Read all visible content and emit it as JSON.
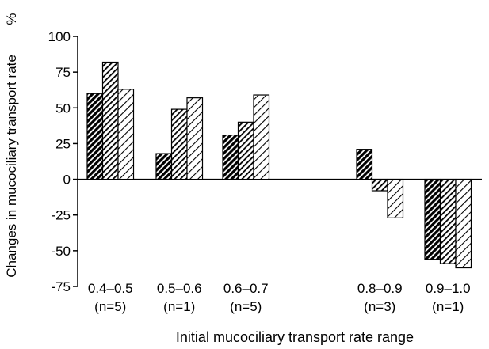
{
  "chart_data": {
    "type": "bar",
    "xlabel": "Initial mucociliary transport rate range",
    "ylabel": "Changes in mucociliary transport rate",
    "yunit": "%",
    "ylim": [
      -75,
      100
    ],
    "yticks": [
      100,
      75,
      50,
      25,
      0,
      -25,
      -50,
      -75
    ],
    "ytick_labels": [
      "100",
      "75",
      "50",
      "25",
      "0",
      "-25",
      "-50",
      "-75"
    ],
    "grid": false,
    "legend": "none",
    "categories": [
      "0.4–0.5",
      "0.5–0.6",
      "0.6–0.7",
      "0.8–0.9",
      "0.9–1.0"
    ],
    "category_counts": [
      "(n=5)",
      "(n=1)",
      "(n=5)",
      "(n=3)",
      "(n=1)"
    ],
    "series": [
      {
        "values": [
          60,
          18,
          31,
          21,
          -56
        ],
        "pattern": "dense-hatch"
      },
      {
        "values": [
          82,
          49,
          40,
          -8,
          -59
        ],
        "pattern": "medium-hatch"
      },
      {
        "values": [
          63,
          57,
          59,
          -27,
          -62
        ],
        "pattern": "sparse-hatch"
      }
    ]
  }
}
